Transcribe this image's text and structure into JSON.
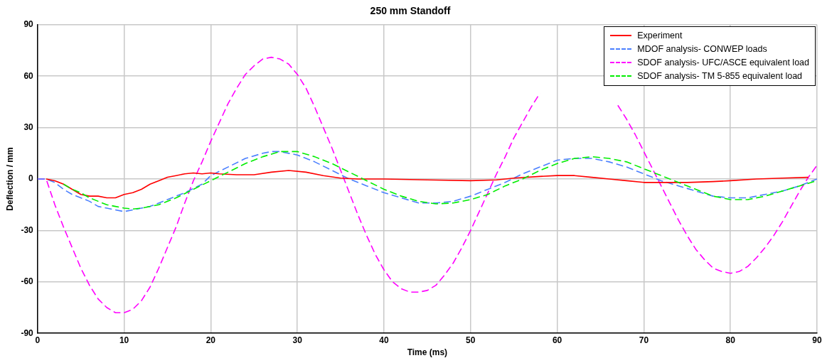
{
  "chart_data": {
    "type": "line",
    "title": "250 mm Standoff",
    "xlabel": "Time (ms)",
    "ylabel": "Deflection / mm",
    "xlim": [
      0,
      90
    ],
    "xticks": [
      0,
      10,
      20,
      30,
      40,
      50,
      60,
      70,
      80,
      90
    ],
    "ylim": [
      -90,
      90
    ],
    "yticks": [
      -90,
      -60,
      -30,
      0,
      30,
      60,
      90
    ],
    "grid": true,
    "legend": "top right",
    "marker": "none",
    "series": [
      {
        "name": "Experiment",
        "color": "#ff0000",
        "line_style": "solid",
        "x": [
          1,
          2,
          3,
          4,
          5,
          6,
          7,
          8,
          9,
          10,
          11,
          12,
          13,
          14,
          15,
          16,
          17,
          18,
          19,
          20,
          21,
          23,
          25,
          27,
          29,
          31,
          33,
          35,
          37,
          40,
          45,
          50,
          53,
          55,
          58,
          60,
          62,
          64,
          66,
          68,
          70,
          72,
          75,
          78,
          80,
          83,
          86,
          89
        ],
        "values": [
          0,
          -1,
          -3,
          -6,
          -9,
          -10,
          -10,
          -11,
          -11,
          -9,
          -8,
          -6,
          -3,
          -1,
          1,
          2,
          3,
          3.5,
          3,
          3.5,
          3,
          2.5,
          2.5,
          4,
          5,
          4,
          2,
          0.5,
          0,
          0,
          -0.5,
          -1,
          -0.5,
          0.5,
          1.5,
          2,
          2,
          1,
          0,
          -1,
          -2,
          -2,
          -2,
          -1.5,
          -1,
          0,
          0.5,
          1
        ]
      },
      {
        "name": "MDOF analysis- CONWEP loads",
        "color": "#4a7fff",
        "line_style": "dashed",
        "x": [
          0,
          1,
          2,
          3,
          4,
          5,
          6,
          7,
          8,
          9,
          10,
          11,
          13,
          15,
          17,
          19,
          20,
          22,
          24,
          26,
          27,
          28,
          30,
          32,
          34,
          36,
          38,
          40,
          42,
          44,
          46,
          48,
          50,
          52,
          54,
          56,
          58,
          60,
          62,
          64,
          66,
          68,
          70,
          72,
          74,
          76,
          78,
          80,
          82,
          84,
          86,
          88,
          90
        ],
        "values": [
          0,
          0,
          -2,
          -6,
          -9,
          -11,
          -13,
          -16,
          -17,
          -18,
          -19,
          -18,
          -16,
          -12,
          -8,
          -3,
          2,
          7,
          12,
          15,
          16,
          16,
          14,
          10,
          5,
          0,
          -4,
          -8,
          -11,
          -14,
          -14,
          -13,
          -10,
          -6,
          -2,
          3,
          7,
          11,
          12,
          12,
          10,
          7,
          3,
          -1,
          -4,
          -7,
          -10,
          -11,
          -11,
          -9,
          -7,
          -4,
          0
        ]
      },
      {
        "name": "SDOF analysis- UFC/ASCE equivalent load",
        "color": "#ff00ff",
        "line_style": "dashed",
        "x": [
          0,
          1,
          2,
          3,
          4,
          5,
          6,
          7,
          8,
          9,
          10,
          11,
          12,
          13,
          14,
          15,
          16,
          17,
          18,
          19,
          20,
          21,
          22,
          23,
          24,
          25,
          26,
          27,
          28,
          29,
          30,
          31,
          32,
          33,
          34,
          35,
          36,
          37,
          38,
          39,
          40,
          41,
          42,
          43,
          44,
          45,
          46,
          47,
          48,
          49,
          50,
          51,
          52,
          53,
          54,
          55,
          56,
          57,
          58,
          62,
          67,
          68,
          69,
          70,
          71,
          72,
          73,
          74,
          75,
          76,
          77,
          78,
          79,
          80,
          81,
          82,
          83,
          84,
          85,
          86,
          87,
          88,
          89,
          90
        ],
        "values": [
          0,
          0,
          -15,
          -28,
          -40,
          -52,
          -62,
          -70,
          -75,
          -78,
          -78,
          -76,
          -71,
          -63,
          -52,
          -40,
          -28,
          -14,
          -1,
          10,
          22,
          33,
          44,
          53,
          61,
          66,
          70,
          71,
          70,
          67,
          61,
          53,
          42,
          30,
          18,
          5,
          -8,
          -21,
          -33,
          -44,
          -53,
          -60,
          -64,
          -66,
          -66,
          -65,
          -62,
          -56,
          -49,
          -40,
          -30,
          -19,
          -8,
          3,
          13,
          24,
          33,
          42,
          50,
          null,
          43,
          35,
          26,
          16,
          6,
          -4,
          -14,
          -24,
          -33,
          -41,
          -47,
          -52,
          -54,
          -55,
          -54,
          -51,
          -46,
          -40,
          -33,
          -25,
          -16,
          -7,
          1,
          8
        ]
      },
      {
        "name": "SDOF analysis- TM 5-855 equivalent load",
        "color": "#00ee00",
        "line_style": "dashed",
        "x": [
          3,
          4,
          5,
          6,
          7,
          8,
          9,
          10,
          11,
          12,
          14,
          16,
          18,
          20,
          22,
          24,
          26,
          28,
          30,
          32,
          34,
          36,
          38,
          40,
          42,
          44,
          46,
          48,
          50,
          52,
          54,
          56,
          58,
          60,
          62,
          64,
          66,
          68,
          70,
          72,
          74,
          76,
          78,
          80,
          82,
          84,
          86,
          88,
          90
        ],
        "values": [
          -3,
          -6,
          -8,
          -11,
          -13,
          -15,
          -16,
          -17,
          -17.5,
          -17,
          -15,
          -11,
          -6,
          -1,
          4,
          9,
          13,
          16,
          16,
          13,
          9,
          4,
          -1,
          -6,
          -10,
          -13,
          -14.5,
          -14,
          -12,
          -9,
          -4,
          0,
          5,
          9,
          12,
          13,
          12,
          10,
          6,
          2,
          -2,
          -6,
          -10,
          -12,
          -12,
          -10,
          -7,
          -4,
          -1
        ]
      }
    ]
  }
}
